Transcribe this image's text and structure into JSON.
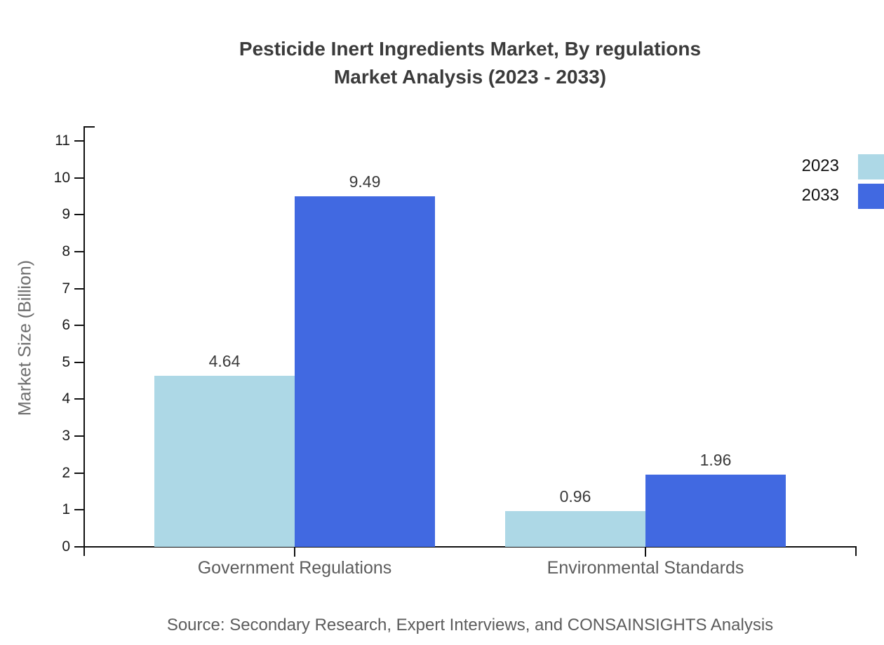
{
  "title": {
    "line1": "Pesticide Inert Ingredients Market, By regulations",
    "line2": "Market Analysis (2023 - 2033)"
  },
  "chart_data": {
    "type": "bar",
    "title": "Pesticide Inert Ingredients Market, By regulations Market Analysis (2023 - 2033)",
    "categories": [
      "Government Regulations",
      "Environmental Standards"
    ],
    "series": [
      {
        "name": "2023",
        "color": "#add8e6",
        "values": [
          4.64,
          0.96
        ]
      },
      {
        "name": "2033",
        "color": "#4169e1",
        "values": [
          9.49,
          1.96
        ]
      }
    ],
    "value_labels": [
      [
        "4.64",
        "0.96"
      ],
      [
        "9.49",
        "1.96"
      ]
    ],
    "xlabel": "",
    "ylabel": "Market Size (Billion)",
    "ylim": [
      0,
      11
    ],
    "ytick_step": 1,
    "yticks": [
      0,
      1,
      2,
      3,
      4,
      5,
      6,
      7,
      8,
      9,
      10,
      11
    ],
    "grid": false,
    "legend_position": "top-right",
    "legend": [
      "2023",
      "2033"
    ]
  },
  "source": "Source: Secondary Research, Expert Interviews, and CONSAINSIGHTS Analysis"
}
